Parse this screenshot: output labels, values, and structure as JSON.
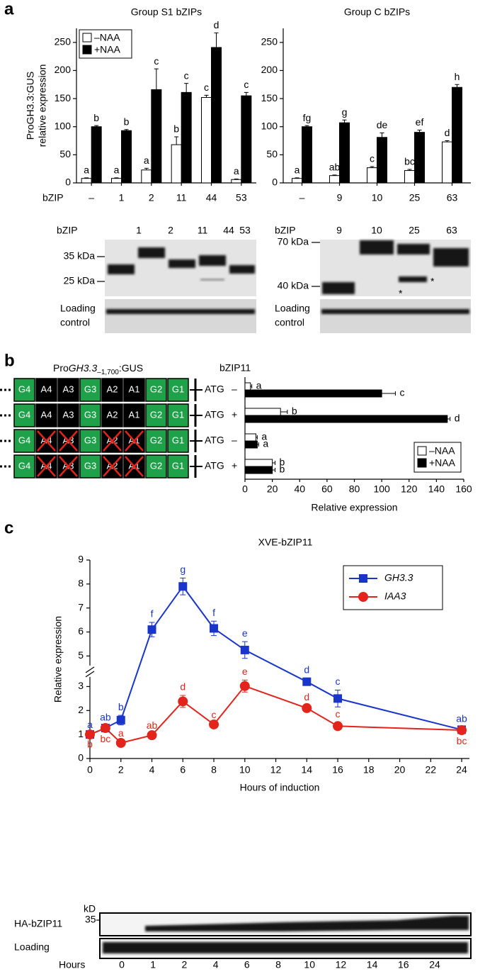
{
  "panel_labels": [
    "a",
    "b",
    "c"
  ],
  "chart_data": [
    {
      "type": "bar",
      "title": "Group S1 bZIPs",
      "ylabel": [
        "ProGH3.3:GUS",
        "relative expression"
      ],
      "xlabel": "bZIP",
      "categories": [
        "–",
        "1",
        "2",
        "11",
        "44",
        "53"
      ],
      "series": [
        {
          "name": "–NAA",
          "color": "#ffffff",
          "values": [
            8,
            8,
            23,
            68,
            152,
            6
          ],
          "errors": [
            1,
            1,
            3,
            14,
            4,
            1
          ],
          "labels": [
            "a",
            "a",
            "a",
            "b",
            "c",
            "a"
          ]
        },
        {
          "name": "+NAA",
          "color": "#000000",
          "values": [
            100,
            93,
            166,
            161,
            241,
            155
          ],
          "errors": [
            2,
            2,
            37,
            16,
            26,
            6
          ],
          "labels": [
            "b",
            "b",
            "c",
            "c",
            "d",
            "c"
          ]
        }
      ],
      "ylim": [
        0,
        275
      ],
      "yticks": [
        0,
        50,
        100,
        150,
        200,
        250
      ],
      "legend": "top-left"
    },
    {
      "type": "bar",
      "title": "Group C bZIPs",
      "categories": [
        "–",
        "9",
        "10",
        "25",
        "63"
      ],
      "series": [
        {
          "color": "#ffffff",
          "values": [
            8,
            13,
            27,
            22,
            73
          ],
          "errors": [
            1,
            1,
            2,
            2,
            2
          ],
          "labels": [
            "a",
            "ab",
            "c",
            "bc",
            "d"
          ]
        },
        {
          "color": "#000000",
          "values": [
            100,
            107,
            81,
            90,
            170
          ],
          "errors": [
            2,
            5,
            8,
            4,
            5
          ],
          "labels": [
            "fg",
            "g",
            "de",
            "ef",
            "h"
          ]
        }
      ],
      "ylim": [
        0,
        275
      ],
      "yticks": [
        0,
        50,
        100,
        150,
        200,
        250
      ]
    },
    {
      "type": "hbar",
      "title": "bZIP11",
      "xlabel": "Relative expression",
      "series": [
        {
          "name": "–NAA",
          "color": "#ffffff",
          "values": [
            4,
            26,
            8,
            20
          ],
          "errors": [
            1,
            5,
            1,
            2
          ],
          "labels": [
            "a",
            "b",
            "a",
            "b"
          ]
        },
        {
          "name": "+NAA",
          "color": "#000000",
          "values": [
            100,
            148,
            9,
            20
          ],
          "errors": [
            10,
            2,
            1,
            2
          ],
          "labels": [
            "c",
            "d",
            "a",
            "b"
          ]
        }
      ],
      "xlim": [
        0,
        160
      ],
      "xticks": [
        0,
        20,
        40,
        60,
        80,
        100,
        120,
        140,
        160
      ],
      "legend": "bottom-right"
    },
    {
      "type": "line",
      "title": "XVE-bZIP11",
      "xlabel": "Hours of induction",
      "ylabel": "Relative expression",
      "x": [
        0,
        1,
        2,
        4,
        6,
        8,
        10,
        14,
        16,
        24
      ],
      "series": [
        {
          "name": "GH3.3",
          "color": "#1a35c9",
          "marker": "square",
          "values": [
            1.0,
            1.27,
            1.6,
            6.1,
            7.9,
            6.15,
            5.25,
            3.2,
            2.5,
            1.2
          ],
          "errors": [
            0.05,
            0.1,
            0.2,
            0.3,
            0.35,
            0.3,
            0.35,
            0.15,
            0.35,
            0.1
          ],
          "labels": [
            "a",
            "ab",
            "b",
            "f",
            "g",
            "f",
            "e",
            "d",
            "c",
            "ab"
          ]
        },
        {
          "name": "IAA3",
          "color": "#e3241c",
          "marker": "circle",
          "values": [
            1.0,
            1.27,
            0.65,
            0.97,
            2.38,
            1.42,
            3.02,
            2.1,
            1.35,
            1.18
          ],
          "errors": [
            0.05,
            0.1,
            0.05,
            0.05,
            0.25,
            0.05,
            0.25,
            0.1,
            0.15,
            0.1
          ],
          "labels": [
            "b",
            "bc",
            "a",
            "ab",
            "d",
            "c",
            "e",
            "d",
            "c",
            "bc"
          ]
        }
      ],
      "xlim": [
        0,
        24.5
      ],
      "xticks": [
        0,
        2,
        4,
        6,
        8,
        10,
        12,
        14,
        16,
        18,
        20,
        22,
        24
      ],
      "ylim": [
        0,
        9
      ],
      "ybreak": [
        3.4,
        4.6
      ],
      "yticks": [
        0,
        1,
        2,
        3,
        5,
        6,
        7,
        8,
        9
      ],
      "legend": "top-right"
    }
  ],
  "blots": [
    {
      "lane_header": "bZIP",
      "lanes": [
        "1",
        "2",
        "11",
        "44",
        "53"
      ],
      "markers": [
        "35 kDa",
        "25 kDa"
      ],
      "loading_label": [
        "Loading",
        "control"
      ]
    },
    {
      "lane_header": "bZIP",
      "lanes": [
        "9",
        "10",
        "25",
        "63"
      ],
      "markers": [
        "70 kDa",
        "40 kDa"
      ],
      "annotations": [
        "*",
        "*"
      ],
      "loading_label": [
        "Loading",
        "control"
      ]
    }
  ],
  "construct": {
    "prefix": "Pro",
    "gene": "GH3.3",
    "subscript": "–1,700",
    "suffix": ":GUS",
    "elements": [
      "G4",
      "A4",
      "A3",
      "G3",
      "A2",
      "A1",
      "G2",
      "G1"
    ],
    "atg": "ATG",
    "rows": [
      {
        "naa": "–",
        "mutated": false
      },
      {
        "naa": "+",
        "mutated": false
      },
      {
        "naa": "–",
        "mutated": true
      },
      {
        "naa": "+",
        "mutated": true
      }
    ]
  },
  "time_blot": {
    "kd_label": "kD",
    "marker": "35",
    "rows": [
      "HA-bZIP11",
      "Loading"
    ],
    "hours_label": "Hours",
    "lanes": [
      "0",
      "1",
      "2",
      "4",
      "6",
      "8",
      "10",
      "12",
      "14",
      "16",
      "24"
    ]
  }
}
